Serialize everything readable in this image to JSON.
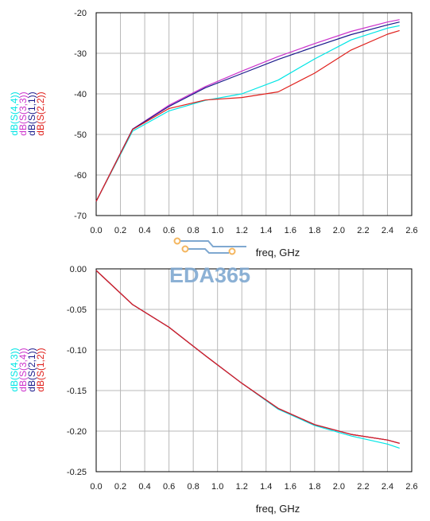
{
  "watermark": {
    "text": "EDA365",
    "color": "#7fa8d0",
    "accent": "#f4b65f"
  },
  "chart_data": [
    {
      "type": "line",
      "xlabel": "freq, GHz",
      "xlim": [
        0.0,
        2.6
      ],
      "x_ticks": [
        "0.0",
        "0.2",
        "0.4",
        "0.6",
        "0.8",
        "1.0",
        "1.2",
        "1.4",
        "1.6",
        "1.8",
        "2.0",
        "2.2",
        "2.4",
        "2.6"
      ],
      "ylim": [
        -70,
        -20
      ],
      "y_ticks": [
        "-20",
        "-30",
        "-40",
        "-50",
        "-60",
        "-70"
      ],
      "grid": true,
      "legend": "rotated labels left of y-axis",
      "x": [
        0.0,
        0.3,
        0.6,
        0.9,
        1.2,
        1.5,
        1.8,
        2.1,
        2.4,
        2.5
      ],
      "series": [
        {
          "name": "dB(S(4,4))",
          "color": "#00e5e5",
          "values": [
            -66.5,
            -49.2,
            -44.2,
            -41.6,
            -40.0,
            -36.6,
            -31.4,
            -26.7,
            -23.8,
            -23.2
          ]
        },
        {
          "name": "dB(S(3,3))",
          "color": "#cc33cc",
          "values": [
            -66.5,
            -48.7,
            -42.8,
            -38.2,
            -34.4,
            -30.8,
            -27.6,
            -24.6,
            -22.3,
            -21.7
          ]
        },
        {
          "name": "dB(S(1,1))",
          "color": "#1a1a8c",
          "values": [
            -66.5,
            -48.7,
            -43.1,
            -38.5,
            -35.0,
            -31.5,
            -28.4,
            -25.4,
            -23.0,
            -22.3
          ]
        },
        {
          "name": "dB(S(2,2))",
          "color": "#e0201c",
          "values": [
            -66.5,
            -48.8,
            -43.6,
            -41.5,
            -40.9,
            -39.5,
            -34.9,
            -29.2,
            -25.3,
            -24.4
          ]
        }
      ]
    },
    {
      "type": "line",
      "xlabel": "freq, GHz",
      "xlim": [
        0.0,
        2.6
      ],
      "x_ticks": [
        "0.0",
        "0.2",
        "0.4",
        "0.6",
        "0.8",
        "1.0",
        "1.2",
        "1.4",
        "1.6",
        "1.8",
        "2.0",
        "2.2",
        "2.4",
        "2.6"
      ],
      "ylim": [
        -0.25,
        0.0
      ],
      "y_ticks": [
        "0.00",
        "-0.05",
        "-0.10",
        "-0.15",
        "-0.20",
        "-0.25"
      ],
      "grid": true,
      "legend": "rotated labels left of y-axis",
      "x": [
        0.0,
        0.3,
        0.6,
        0.9,
        1.2,
        1.5,
        1.8,
        2.1,
        2.4,
        2.5
      ],
      "series": [
        {
          "name": "dB(S(4,3))",
          "color": "#00e5e5",
          "values": [
            -0.002,
            -0.044,
            -0.072,
            -0.107,
            -0.141,
            -0.173,
            -0.193,
            -0.206,
            -0.216,
            -0.221
          ]
        },
        {
          "name": "dB(S(3,4))",
          "color": "#cc33cc",
          "values": [
            -0.002,
            -0.044,
            -0.072,
            -0.107,
            -0.141,
            -0.172,
            -0.192,
            -0.204,
            -0.211,
            -0.215
          ]
        },
        {
          "name": "dB(S(2,1))",
          "color": "#1a1a8c",
          "values": [
            -0.002,
            -0.044,
            -0.072,
            -0.107,
            -0.141,
            -0.172,
            -0.192,
            -0.204,
            -0.211,
            -0.215
          ]
        },
        {
          "name": "dB(S(1,2))",
          "color": "#e0201c",
          "values": [
            -0.002,
            -0.044,
            -0.072,
            -0.107,
            -0.141,
            -0.172,
            -0.192,
            -0.204,
            -0.211,
            -0.215
          ]
        }
      ]
    }
  ]
}
